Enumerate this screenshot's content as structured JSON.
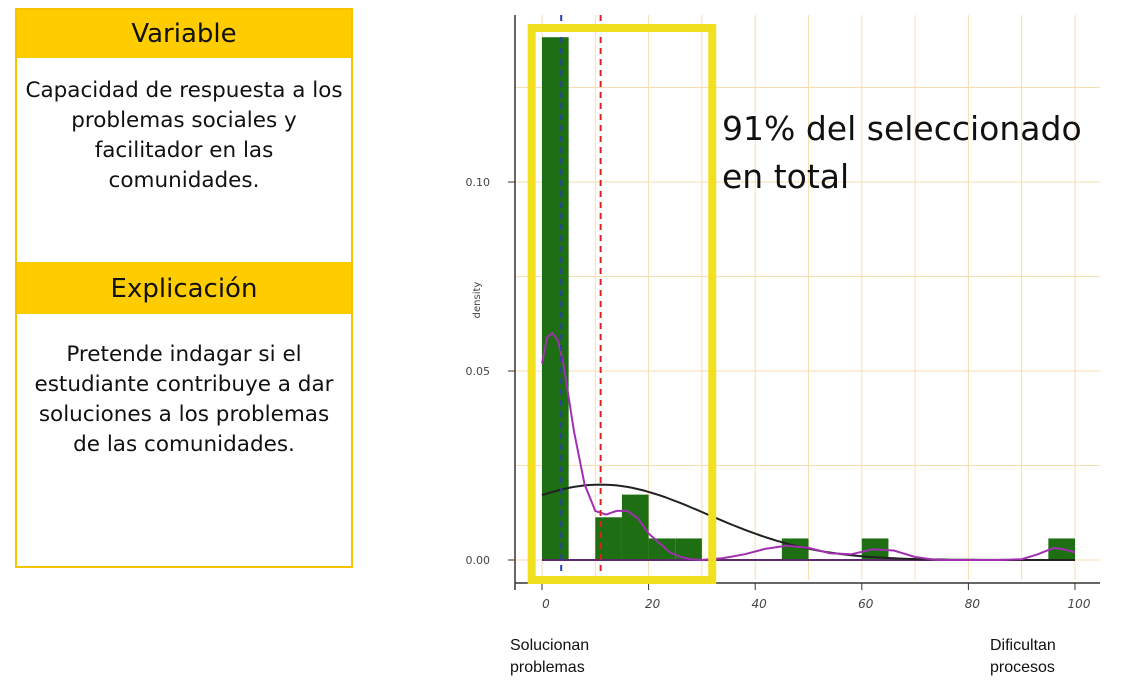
{
  "panel": {
    "variable_header": "Variable",
    "variable_text": "Capacidad de respuesta a los problemas sociales y facilitador en las comunidades.",
    "explanation_header": "Explicación",
    "explanation_text": "Pretende indagar si el estudiante contribuye a dar soluciones a los problemas de las comunidades.",
    "header_color": "#ffcc00"
  },
  "annotation": {
    "text": "91% del seleccionado en total",
    "highlight_color": "#f0e020"
  },
  "captions": {
    "left": "Solucionan problemas",
    "right": "Dificultan procesos"
  },
  "chart_data": {
    "type": "bar",
    "ylabel": "density",
    "xlim": [
      0,
      100
    ],
    "ylim": [
      0,
      0.14
    ],
    "x_ticks": [
      0,
      20,
      40,
      60,
      80,
      100
    ],
    "y_ticks": [
      0.0,
      0.05,
      0.1
    ],
    "y_tick_labels": [
      "0.00",
      "0.05",
      "0.10"
    ],
    "histogram": {
      "bin_width": 5,
      "bins": [
        {
          "x0": 0,
          "x1": 5,
          "density": 0.1383
        },
        {
          "x0": 5,
          "x1": 10,
          "density": 0.0
        },
        {
          "x0": 10,
          "x1": 15,
          "density": 0.0113
        },
        {
          "x0": 15,
          "x1": 20,
          "density": 0.0173
        },
        {
          "x0": 20,
          "x1": 25,
          "density": 0.0057
        },
        {
          "x0": 25,
          "x1": 30,
          "density": 0.0057
        },
        {
          "x0": 45,
          "x1": 50,
          "density": 0.0057
        },
        {
          "x0": 60,
          "x1": 65,
          "density": 0.0057
        },
        {
          "x0": 95,
          "x1": 100,
          "density": 0.0057
        }
      ],
      "color": "#1e6e14"
    },
    "density_curve": {
      "color": "#a030b0",
      "x": [
        0,
        1,
        2,
        3,
        4,
        5,
        6,
        8,
        10,
        12,
        14,
        16,
        18,
        20,
        22,
        24,
        26,
        28,
        30,
        34,
        38,
        42,
        46,
        50,
        54,
        58,
        62,
        66,
        70,
        74,
        78,
        82,
        86,
        90,
        93,
        96,
        98,
        100
      ],
      "y": [
        0.052,
        0.059,
        0.06,
        0.058,
        0.052,
        0.043,
        0.034,
        0.02,
        0.013,
        0.012,
        0.013,
        0.013,
        0.011,
        0.007,
        0.0045,
        0.002,
        0.0008,
        0.0002,
        0.0,
        0.0005,
        0.0015,
        0.003,
        0.0038,
        0.0032,
        0.0018,
        0.0015,
        0.0028,
        0.0025,
        0.0008,
        0.0,
        0.0,
        0.0,
        0.0,
        0.0002,
        0.0015,
        0.0032,
        0.0028,
        0.002
      ]
    },
    "normal_curve": {
      "color": "#222222",
      "mean": 11,
      "sd": 20,
      "scale": 1.0
    },
    "reference_lines": [
      {
        "x": 3.6,
        "color": "#2a3fb0",
        "style": "dashed"
      },
      {
        "x": 11,
        "color": "#e02020",
        "style": "dashed"
      }
    ],
    "highlight_box": {
      "x0": -1,
      "x1": 31,
      "color": "#f0e020"
    },
    "grid": true,
    "grid_color": "#f7deb0"
  }
}
